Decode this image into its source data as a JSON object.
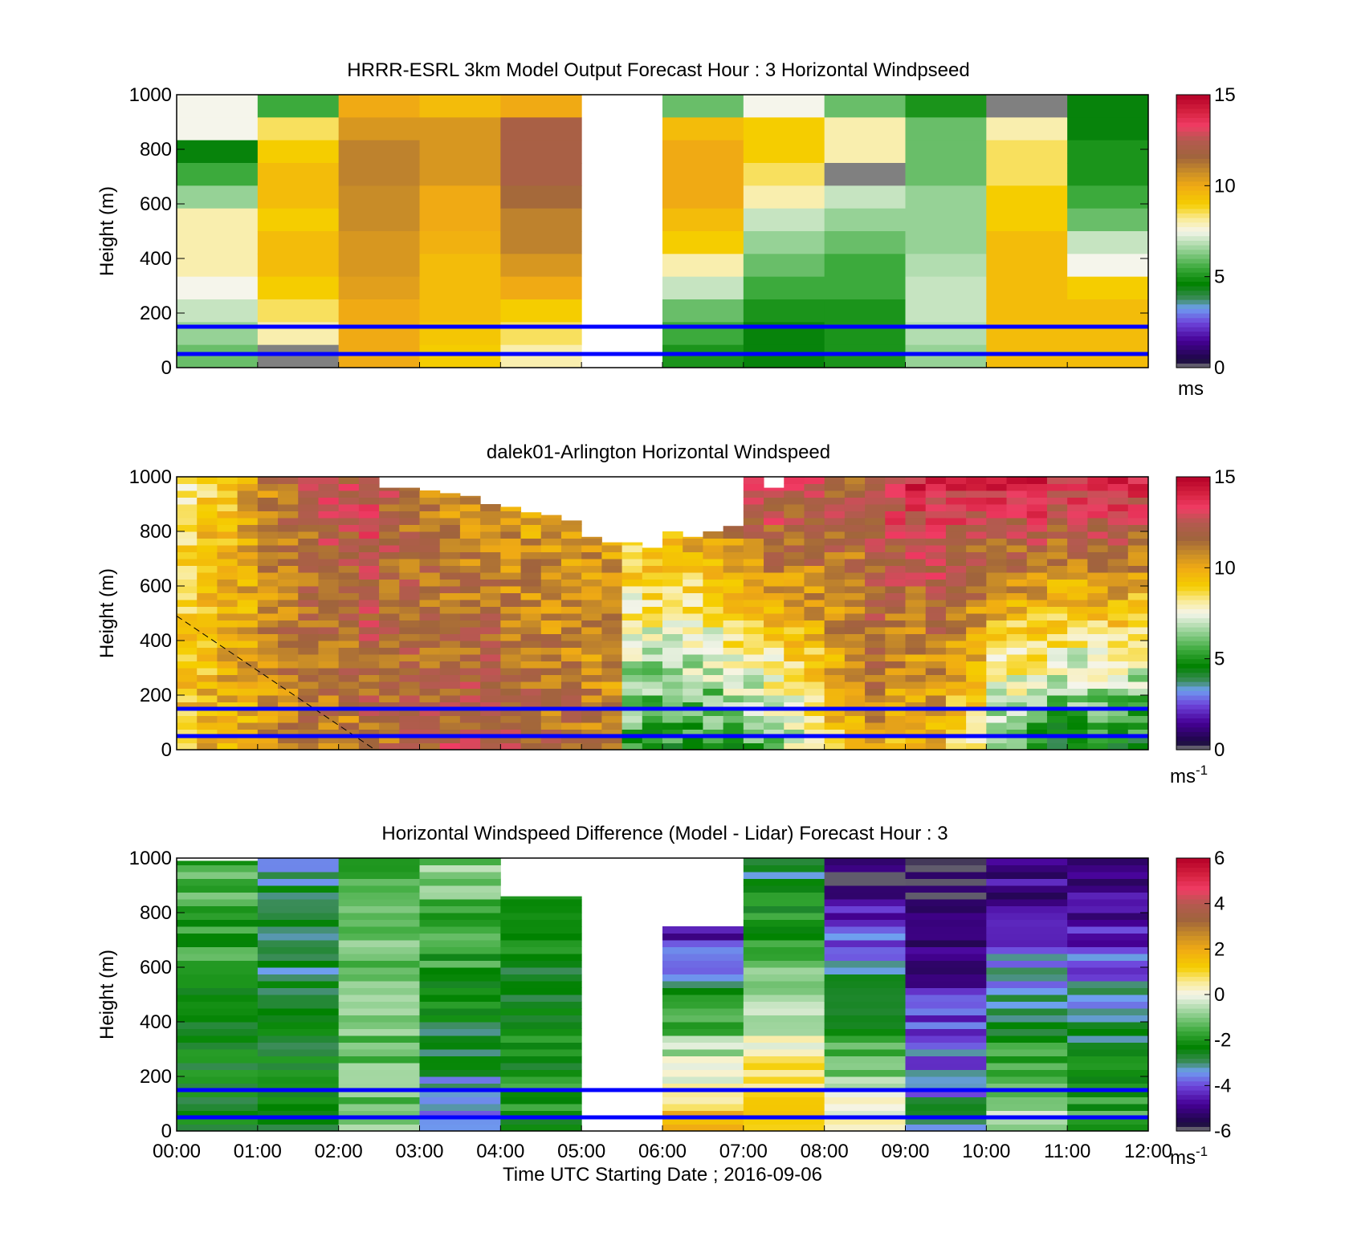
{
  "figure": {
    "xlabel": "Time UTC  Starting Date ; 2016-09-06",
    "xticks": [
      "00:00",
      "01:00",
      "02:00",
      "03:00",
      "04:00",
      "05:00",
      "06:00",
      "07:00",
      "08:00",
      "09:00",
      "10:00",
      "11:00",
      "12:00"
    ]
  },
  "chart_data": [
    {
      "type": "heatmap",
      "title": "HRRR-ESRL 3km Model Output   Forecast Hour : 3 Horizontal Windpseed",
      "ylabel": "Height (m)",
      "xlim": [
        0,
        12
      ],
      "ylim": [
        0,
        1000
      ],
      "yticks": [
        "1000",
        "800",
        "600",
        "400",
        "200",
        "0"
      ],
      "colorbar": {
        "ticks": [
          "15",
          "10",
          "5",
          "0"
        ],
        "range": [
          0,
          15
        ],
        "unit": "ms"
      },
      "reference_lines_m": [
        150,
        50
      ],
      "columns": [
        {
          "t": 0,
          "v": [
            7.5,
            7.5,
            4.5,
            5.5,
            6.5,
            8.0,
            8.0,
            8.0,
            7.5,
            7.0,
            6.5,
            6.0
          ]
        },
        {
          "t": 1,
          "v": [
            5.5,
            8.5,
            9.0,
            9.5,
            9.5,
            9.0,
            9.5,
            9.5,
            9.0,
            8.5,
            8.0,
            0
          ]
        },
        {
          "t": 2,
          "v": [
            10.0,
            10.5,
            11.0,
            11.0,
            10.8,
            10.8,
            10.5,
            10.5,
            10.3,
            10.0,
            10.0,
            10.0
          ]
        },
        {
          "t": 3,
          "v": [
            9.5,
            10.5,
            10.5,
            10.5,
            10.0,
            10.0,
            9.8,
            9.5,
            9.5,
            9.5,
            9.2,
            9.0
          ]
        },
        {
          "t": 4,
          "v": [
            10.0,
            12.0,
            12.0,
            12.0,
            11.5,
            11.0,
            11.0,
            10.5,
            10.0,
            9.0,
            8.5,
            8.0
          ]
        },
        {
          "t": 5,
          "v": [
            null,
            null,
            null,
            null,
            null,
            null,
            null,
            null,
            null,
            null,
            null,
            null
          ]
        },
        {
          "t": 6,
          "v": [
            6.0,
            9.5,
            10.0,
            10.0,
            10.0,
            9.5,
            9.0,
            8.0,
            7.0,
            6.0,
            5.5,
            5.0
          ]
        },
        {
          "t": 7,
          "v": [
            7.5,
            9.0,
            9.0,
            8.5,
            8.0,
            7.0,
            6.5,
            6.0,
            5.5,
            5.0,
            4.5,
            4.5
          ]
        },
        {
          "t": 8,
          "v": [
            6.0,
            8.0,
            8.0,
            0,
            7.0,
            6.5,
            6.0,
            5.5,
            5.5,
            5.0,
            5.0,
            5.0
          ]
        },
        {
          "t": 9,
          "v": [
            5.0,
            6.0,
            6.0,
            6.0,
            6.5,
            6.5,
            6.5,
            6.8,
            7.0,
            7.0,
            6.8,
            6.5
          ]
        },
        {
          "t": 10,
          "v": [
            0,
            8.0,
            8.5,
            8.5,
            9.0,
            9.0,
            9.5,
            9.5,
            9.5,
            9.5,
            9.5,
            9.5
          ]
        },
        {
          "t": 11,
          "v": [
            4.5,
            4.5,
            5.0,
            5.0,
            5.5,
            6.0,
            7.0,
            7.5,
            9.0,
            9.5,
            9.5,
            9.5
          ]
        }
      ]
    },
    {
      "type": "heatmap",
      "title": "dalek01-Arlington  Horizontal Windspeed",
      "ylabel": "Height (m)",
      "xlim": [
        0,
        12
      ],
      "ylim": [
        0,
        1000
      ],
      "yticks": [
        "1000",
        "800",
        "600",
        "400",
        "200",
        "0"
      ],
      "colorbar": {
        "ticks": [
          "15",
          "10",
          "5",
          "0"
        ],
        "range": [
          0,
          15
        ],
        "unit": "ms",
        "unit_sup": "-1"
      },
      "reference_lines_m": [
        150,
        50
      ],
      "dashed_line": {
        "x": [
          0,
          2.45
        ],
        "y": [
          490,
          0
        ]
      },
      "time_steps": [
        0.05,
        0.3,
        0.55,
        0.8,
        1.05,
        1.3,
        1.55,
        1.8,
        2.05,
        2.3,
        2.55,
        2.8,
        3.05,
        3.3,
        3.55,
        3.8,
        4.05,
        4.3,
        4.55,
        4.8,
        5.05,
        5.3,
        5.55,
        5.8,
        6.05,
        6.3,
        6.55,
        6.8,
        7.05,
        7.3,
        7.55,
        7.8,
        8.05,
        8.3,
        8.55,
        8.8,
        9.05,
        9.3,
        9.55,
        9.8,
        10.05,
        10.3,
        10.55,
        10.8,
        11.05,
        11.3,
        11.55,
        11.8
      ],
      "top_of_data_m": [
        1000,
        1000,
        1000,
        1000,
        1000,
        1000,
        1000,
        1000,
        1000,
        1000,
        960,
        960,
        950,
        940,
        930,
        900,
        890,
        870,
        860,
        840,
        780,
        760,
        760,
        740,
        800,
        780,
        800,
        820,
        1000,
        960,
        1000,
        1000,
        1000,
        1000,
        1000,
        1000,
        1000,
        1000,
        1000,
        1000,
        1000,
        1000,
        1000,
        1000,
        1000,
        1000,
        1000,
        1000
      ],
      "bottom_speed": [
        9.5,
        9.8,
        10,
        10,
        10.5,
        10.8,
        11,
        11,
        11,
        11.5,
        11.5,
        11.8,
        12,
        12.2,
        12.3,
        12.3,
        12,
        11.8,
        11.5,
        11.5,
        11,
        10.8,
        5.5,
        5,
        5,
        5,
        5,
        5.5,
        5.5,
        6,
        7,
        7.5,
        9,
        10,
        10.5,
        9.5,
        9,
        9.5,
        8.5,
        8,
        6,
        5.5,
        5,
        4.5,
        4.5,
        4.5,
        4.5,
        4.5
      ],
      "top_speed": [
        8,
        9,
        9.5,
        10,
        11,
        11.5,
        12,
        12.5,
        12.5,
        13,
        12,
        11.5,
        11,
        10.5,
        10.5,
        10.5,
        10,
        10,
        10,
        10.2,
        10.2,
        10.5,
        10.5,
        11,
        11,
        11.5,
        12,
        12.5,
        13,
        13.5,
        13,
        13,
        12.5,
        12,
        13,
        13.5,
        14,
        14,
        14,
        13.5,
        14,
        14,
        14.5,
        14,
        14,
        14.5,
        14.5,
        14
      ]
    },
    {
      "type": "heatmap",
      "title": "Horizontal Windspeed Difference (Model - Lidar) Forecast Hour : 3",
      "ylabel": "Height (m)",
      "xlim": [
        0,
        12
      ],
      "ylim": [
        0,
        1000
      ],
      "yticks": [
        "1000",
        "800",
        "600",
        "400",
        "200",
        "0"
      ],
      "colorbar": {
        "ticks": [
          "6",
          "4",
          "2",
          "0",
          "-2",
          "-4",
          "-6"
        ],
        "range": [
          -6,
          6
        ],
        "unit": "ms",
        "unit_sup": "-1"
      },
      "reference_lines_m": [
        150,
        50
      ],
      "columns": [
        {
          "t": 0,
          "top_m": 990,
          "bottom": -2.5,
          "top": -1.5
        },
        {
          "t": 1,
          "top_m": 1000,
          "bottom": -2.3,
          "top": -3.0
        },
        {
          "t": 2,
          "top_m": 1000,
          "bottom": -1.0,
          "top": -1.5
        },
        {
          "t": 3,
          "top_m": 1000,
          "bottom": -3.5,
          "top": -0.8
        },
        {
          "t": 4,
          "top_m": 860,
          "bottom": -2.0,
          "top": -2.5
        },
        {
          "t": 5,
          "top_m": 0,
          "bottom": 0,
          "top": 0
        },
        {
          "t": 6,
          "top_m": 750,
          "bottom": 2.0,
          "top": -5.0
        },
        {
          "t": 7,
          "top_m": 1000,
          "bottom": 1.5,
          "top": -3.0
        },
        {
          "t": 8,
          "top_m": 1000,
          "bottom": 0.5,
          "top": -6.0
        },
        {
          "t": 9,
          "top_m": 1000,
          "bottom": -3.0,
          "top": -6.0
        },
        {
          "t": 10,
          "top_m": 1000,
          "bottom": -0.5,
          "top": -5.5
        },
        {
          "t": 11,
          "top_m": 1000,
          "bottom": -1.5,
          "top": -5.5
        }
      ]
    }
  ]
}
